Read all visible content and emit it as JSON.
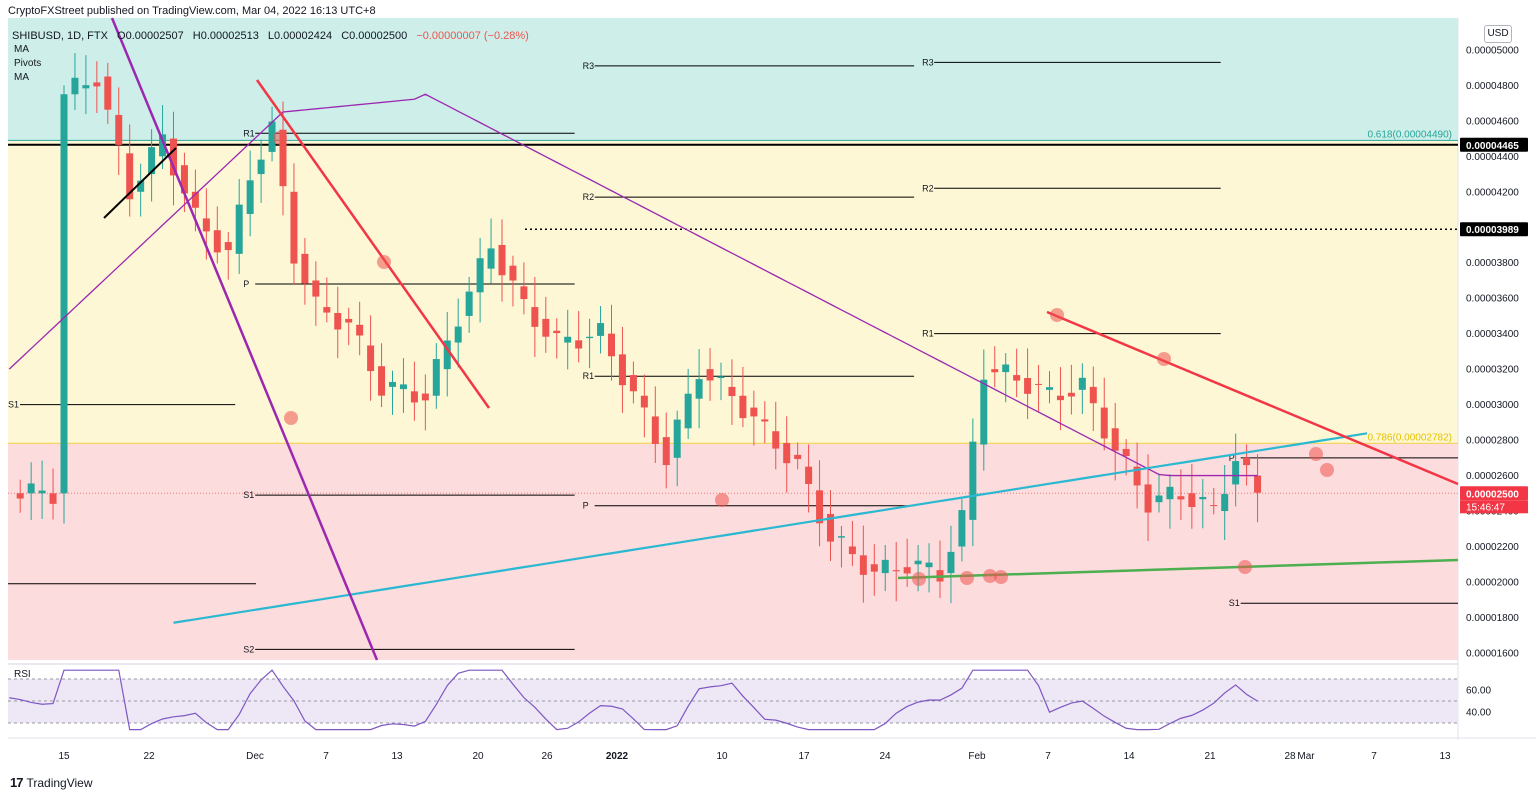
{
  "header": {
    "publisher": "CryptoFXStreet published on TradingView.com, Mar 04, 2022 16:13 UTC+8"
  },
  "symbol": {
    "name": "SHIBUSD, 1D, FTX",
    "open": "O0.00002507",
    "high": "H0.00002513",
    "low": "L0.00002424",
    "close": "C0.00002500",
    "change": "−0.00000007 (−0.28%)"
  },
  "indicators": [
    "MA",
    "Pivots",
    "MA"
  ],
  "currency": "USD",
  "branding": "TradingView",
  "colors": {
    "up_candle": "#26a69a",
    "down_candle": "#ef5350",
    "ma_short": "#9c27b0",
    "ma_long": "#2bb8d1",
    "trend_red": "#f23645",
    "trend_green": "#4caf50",
    "zone_teal": "#cdeee9",
    "zone_yellow": "#fdf7d6",
    "zone_red": "#fcdcdc",
    "rsi_line": "#7e57c2"
  },
  "chart_data": {
    "type": "candlestick",
    "price_axis": {
      "ticks": [
        "0.00005000",
        "0.00004800",
        "0.00004600",
        "0.00004400",
        "0.00004200",
        "0.00004000",
        "0.00003800",
        "0.00003600",
        "0.00003400",
        "0.00003200",
        "0.00003000",
        "0.00002800",
        "0.00002600",
        "0.00002400",
        "0.00002200",
        "0.00002000",
        "0.00001800",
        "0.00001600"
      ],
      "range": [
        1.56e-05,
        5.18e-05
      ]
    },
    "time_axis": {
      "labels": [
        {
          "label": "15",
          "bold": false
        },
        {
          "label": "22",
          "bold": false
        },
        {
          "label": "Dec",
          "bold": false
        },
        {
          "label": "7",
          "bold": false
        },
        {
          "label": "13",
          "bold": false
        },
        {
          "label": "20",
          "bold": false
        },
        {
          "label": "26",
          "bold": false
        },
        {
          "label": "2022",
          "bold": true
        },
        {
          "label": "10",
          "bold": false
        },
        {
          "label": "17",
          "bold": false
        },
        {
          "label": "24",
          "bold": false
        },
        {
          "label": "Feb",
          "bold": false
        },
        {
          "label": "7",
          "bold": false
        },
        {
          "label": "14",
          "bold": false
        },
        {
          "label": "21",
          "bold": false
        },
        {
          "label": "28",
          "bold": false
        },
        {
          "label": "Mar",
          "bold": false
        },
        {
          "label": "7",
          "bold": false
        },
        {
          "label": "13",
          "bold": false
        }
      ]
    },
    "price_badges": [
      {
        "value": "0.00004465",
        "style": "black"
      },
      {
        "value": "0.00003989",
        "style": "black"
      },
      {
        "value": "0.00002500",
        "style": "red",
        "countdown": "15:46:47"
      }
    ],
    "fib_labels": [
      {
        "text": "0.618(0.00004490)",
        "value": 4.49e-05,
        "color": "#26a69a"
      },
      {
        "text": "0.786(0.00002782)",
        "value": 2.782e-05,
        "color": "#e6c200"
      }
    ],
    "zones": [
      {
        "name": "teal",
        "from": 4.49e-05,
        "to": 5.18e-05
      },
      {
        "name": "yellow",
        "from": 2.782e-05,
        "to": 4.49e-05
      },
      {
        "name": "red",
        "from": 1.56e-05,
        "to": 2.782e-05
      }
    ],
    "pivot_levels": [
      {
        "label": "R1",
        "value": 4.53e-05,
        "start": "Dec 1",
        "end": "Jan 1"
      },
      {
        "label": "P",
        "value": 3.68e-05,
        "start": "Dec 1",
        "end": "Jan 1"
      },
      {
        "label": "S1",
        "value": 3e-05,
        "start": "Nov 1",
        "end": "Dec 1"
      },
      {
        "label": "S1",
        "value": 2.49e-05,
        "start": "Dec 1",
        "end": "Jan 1"
      },
      {
        "label": "S2",
        "value": 1.62e-05,
        "start": "Dec 1",
        "end": "Jan 1"
      },
      {
        "label": "R3",
        "value": 4.91e-05,
        "start": "Jan 1",
        "end": "Feb 1"
      },
      {
        "label": "R2",
        "value": 4.17e-05,
        "start": "Jan 1",
        "end": "Feb 1"
      },
      {
        "label": "R1",
        "value": 3.16e-05,
        "start": "Jan 1",
        "end": "Feb 1"
      },
      {
        "label": "P",
        "value": 2.43e-05,
        "start": "Jan 1",
        "end": "Feb 1"
      },
      {
        "label": "R3",
        "value": 4.93e-05,
        "start": "Feb 1",
        "end": "Mar 1"
      },
      {
        "label": "R2",
        "value": 4.22e-05,
        "start": "Feb 1",
        "end": "Mar 1"
      },
      {
        "label": "R1",
        "value": 3.4e-05,
        "start": "Feb 1",
        "end": "Mar 1"
      },
      {
        "label": "P",
        "value": 2.7e-05,
        "start": "Mar 1",
        "end": "Apr 1"
      },
      {
        "label": "S1",
        "value": 1.88e-05,
        "start": "Mar 1",
        "end": "Apr 1"
      }
    ],
    "rsi": {
      "label": "RSI",
      "ticks": [
        "60.00",
        "40.00"
      ],
      "upper_band": 70,
      "lower_band": 30,
      "mid": 50
    }
  }
}
